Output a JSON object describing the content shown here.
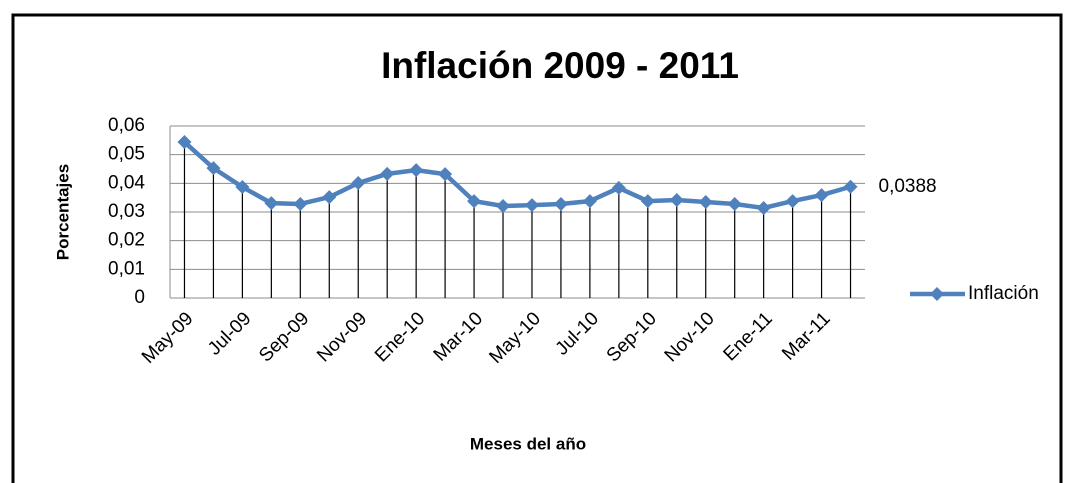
{
  "chart_data": {
    "type": "line",
    "title": "Inflación 2009 - 2011",
    "x_label": "Meses del año",
    "y_label": "Porcentajes",
    "categories": [
      "May-09",
      null,
      "Jul-09",
      null,
      "Sep-09",
      null,
      "Nov-09",
      null,
      "Ene-10",
      null,
      "Mar-10",
      null,
      "May-10",
      null,
      "Jul-10",
      null,
      "Sep-10",
      null,
      "Nov-10",
      null,
      "Ene-11",
      null,
      "Mar-11",
      null
    ],
    "series": [
      {
        "name": "Inflación",
        "color": "#4f81bd",
        "values": [
          0.0544,
          0.0453,
          0.0387,
          0.0331,
          0.0328,
          0.0352,
          0.0401,
          0.0433,
          0.0446,
          0.0432,
          0.0338,
          0.0321,
          0.0324,
          0.0328,
          0.0338,
          0.0384,
          0.0338,
          0.0342,
          0.0335,
          0.0328,
          0.0314,
          0.0338,
          0.0359,
          0.0388
        ],
        "value_labels": [
          null,
          null,
          null,
          null,
          null,
          null,
          null,
          null,
          null,
          null,
          null,
          null,
          null,
          null,
          null,
          null,
          null,
          null,
          null,
          null,
          null,
          null,
          null,
          "0,0388"
        ]
      }
    ],
    "ylim": [
      0,
      0.06
    ],
    "yticks": [
      0,
      {
        "value": 0.01,
        "label": "0,01"
      },
      {
        "value": 0.02,
        "label": "0,02"
      },
      {
        "value": 0.03,
        "label": "0,03"
      },
      {
        "value": 0.04,
        "label": "0,04"
      },
      {
        "value": 0.05,
        "label": "0,05"
      },
      {
        "value": 0.06,
        "label": "0,06"
      }
    ],
    "grid": true,
    "drop_lines": true,
    "legend": "right"
  }
}
